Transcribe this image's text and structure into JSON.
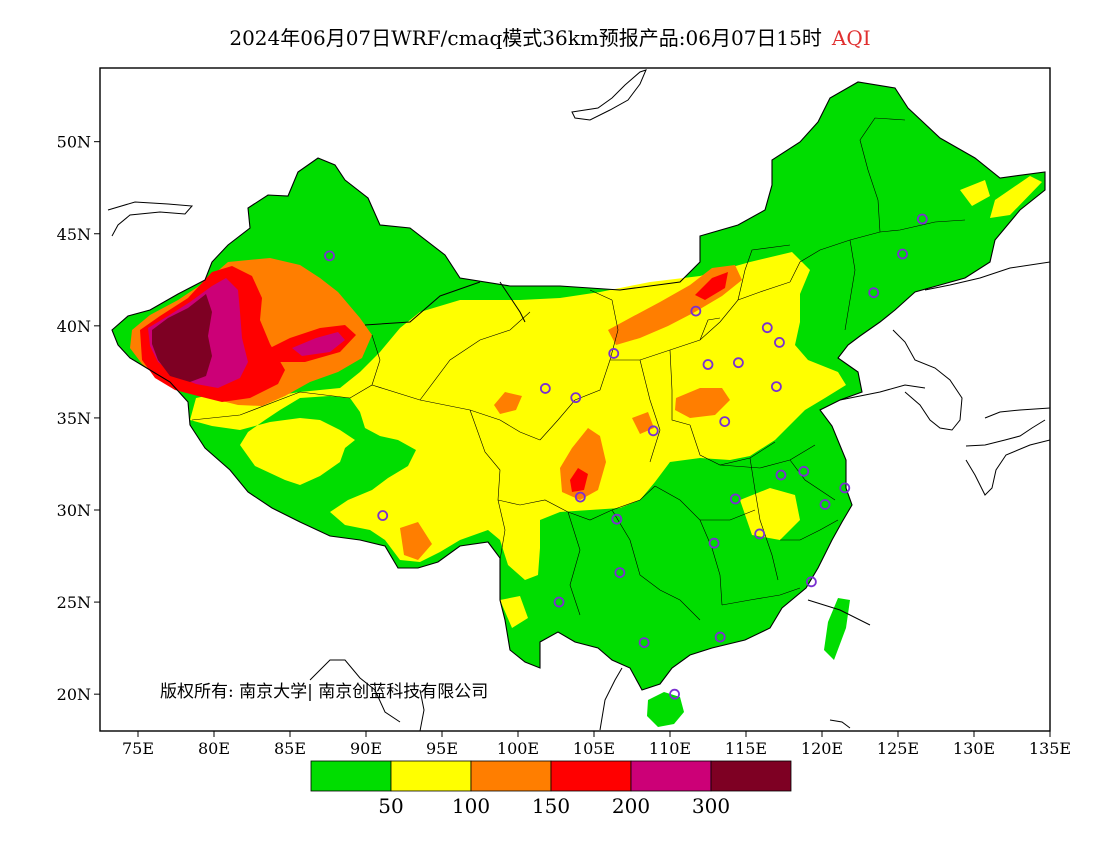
{
  "title": {
    "main": "2024年06月07日WRF/cmaq模式36km预报产品:06月07日15时",
    "highlight": "AQI",
    "highlight_color": "#e03030"
  },
  "copyright": "版权所有: 南京大学| 南京创蓝科技有限公司",
  "axes": {
    "lon_ticks": [
      "75E",
      "80E",
      "85E",
      "90E",
      "95E",
      "100E",
      "105E",
      "110E",
      "115E",
      "120E",
      "125E",
      "130E",
      "135E"
    ],
    "lat_ticks": [
      "20N",
      "25N",
      "30N",
      "35N",
      "40N",
      "45N",
      "50N"
    ]
  },
  "legend": {
    "colors": [
      "#00dd00",
      "#ffff00",
      "#ff7e00",
      "#ff0000",
      "#cc0077",
      "#7e0023"
    ],
    "labels": [
      "50",
      "100",
      "150",
      "200",
      "300"
    ]
  },
  "map_colors": {
    "ocean": "#ffffff",
    "border": "#000000",
    "station": "#7a30d0"
  },
  "stations": [
    {
      "lon": 87.6,
      "lat": 43.8
    },
    {
      "lon": 91.1,
      "lat": 29.7
    },
    {
      "lon": 101.8,
      "lat": 36.6
    },
    {
      "lon": 103.8,
      "lat": 36.1
    },
    {
      "lon": 106.3,
      "lat": 38.5
    },
    {
      "lon": 111.7,
      "lat": 40.8
    },
    {
      "lon": 112.5,
      "lat": 37.9
    },
    {
      "lon": 114.5,
      "lat": 38.0
    },
    {
      "lon": 116.4,
      "lat": 39.9
    },
    {
      "lon": 117.2,
      "lat": 39.1
    },
    {
      "lon": 117.0,
      "lat": 36.7
    },
    {
      "lon": 113.6,
      "lat": 34.8
    },
    {
      "lon": 108.9,
      "lat": 34.3
    },
    {
      "lon": 104.1,
      "lat": 30.7
    },
    {
      "lon": 106.5,
      "lat": 29.5
    },
    {
      "lon": 106.7,
      "lat": 26.6
    },
    {
      "lon": 102.7,
      "lat": 25.0
    },
    {
      "lon": 108.3,
      "lat": 22.8
    },
    {
      "lon": 113.3,
      "lat": 23.1
    },
    {
      "lon": 110.3,
      "lat": 20.0
    },
    {
      "lon": 112.9,
      "lat": 28.2
    },
    {
      "lon": 115.9,
      "lat": 28.7
    },
    {
      "lon": 114.3,
      "lat": 30.6
    },
    {
      "lon": 117.3,
      "lat": 31.9
    },
    {
      "lon": 118.8,
      "lat": 32.1
    },
    {
      "lon": 120.2,
      "lat": 30.3
    },
    {
      "lon": 121.5,
      "lat": 31.2
    },
    {
      "lon": 119.3,
      "lat": 26.1
    },
    {
      "lon": 123.4,
      "lat": 41.8
    },
    {
      "lon": 125.3,
      "lat": 43.9
    },
    {
      "lon": 126.6,
      "lat": 45.8
    }
  ]
}
